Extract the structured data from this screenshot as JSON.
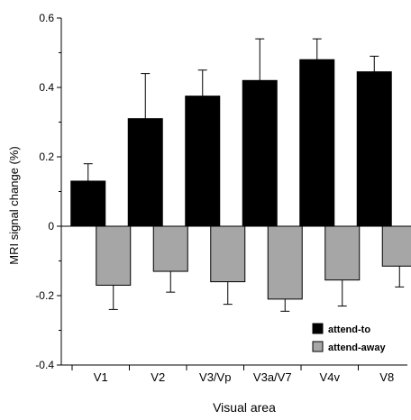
{
  "chart_data": {
    "type": "bar",
    "xlabel": "Visual area",
    "ylabel": "MRI signal change (%)",
    "ylim": [
      -0.4,
      0.6
    ],
    "y_ticks": [
      -0.4,
      -0.2,
      0,
      0.2,
      0.4,
      0.6
    ],
    "y_tick_labels": [
      "-0.4",
      "-0.2",
      "0",
      "0.2",
      "0.4",
      "0.6"
    ],
    "grid": false,
    "legend_position": "bottom-right",
    "categories": [
      "V1",
      "V2",
      "V3/Vp",
      "V3a/V7",
      "V4v",
      "V8"
    ],
    "series": [
      {
        "name": "attend-to",
        "color": "#000000",
        "values": [
          0.13,
          0.31,
          0.375,
          0.42,
          0.48,
          0.445
        ],
        "error": [
          0.05,
          0.13,
          0.075,
          0.12,
          0.06,
          0.045
        ]
      },
      {
        "name": "attend-away",
        "color": "#a6a6a6",
        "values": [
          -0.17,
          -0.13,
          -0.16,
          -0.21,
          -0.155,
          -0.115
        ],
        "error": [
          0.07,
          0.06,
          0.065,
          0.035,
          0.075,
          0.06
        ]
      }
    ]
  }
}
